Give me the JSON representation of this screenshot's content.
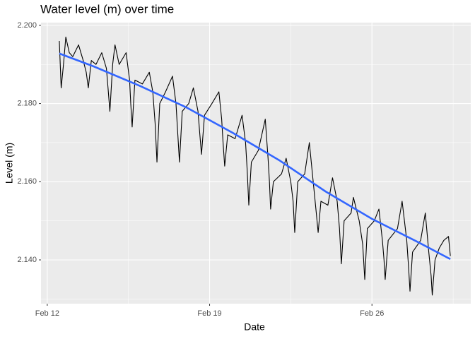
{
  "chart_data": {
    "type": "line",
    "title": "Water level (m) over time",
    "x_label": "Date",
    "y_label": "Level (m)",
    "xlim": [
      11.73,
      30.26
    ],
    "ylim": [
      2.1288,
      2.2007
    ],
    "xticks": [
      {
        "value": 12,
        "label": "Feb 12"
      },
      {
        "value": 19,
        "label": "Feb 19"
      },
      {
        "value": 26,
        "label": "Feb 26"
      }
    ],
    "yticks": [
      {
        "value": 2.14,
        "label": "2.140"
      },
      {
        "value": 2.16,
        "label": "2.160"
      },
      {
        "value": 2.18,
        "label": "2.180"
      },
      {
        "value": 2.2,
        "label": "2.200"
      }
    ],
    "xminor": [
      15.5,
      22.5,
      29.5
    ],
    "yminor": [
      2.13,
      2.15,
      2.17,
      2.19
    ],
    "grid": true,
    "background": "#ebebeb",
    "series": [
      {
        "color": "#000000",
        "width": 1.1,
        "x": [
          12.52,
          12.6,
          12.7,
          12.8,
          12.95,
          13.1,
          13.35,
          13.55,
          13.68,
          13.77,
          13.9,
          14.1,
          14.35,
          14.55,
          14.62,
          14.7,
          14.82,
          14.92,
          15.1,
          15.4,
          15.55,
          15.6,
          15.66,
          15.78,
          16.1,
          16.4,
          16.55,
          16.65,
          16.73,
          16.85,
          17.1,
          17.4,
          17.55,
          17.63,
          17.7,
          17.82,
          18.1,
          18.3,
          18.5,
          18.58,
          18.65,
          18.78,
          19.1,
          19.4,
          19.52,
          19.58,
          19.65,
          19.78,
          20.1,
          20.4,
          20.55,
          20.62,
          20.69,
          20.8,
          21.1,
          21.4,
          21.52,
          21.58,
          21.63,
          21.75,
          22.1,
          22.3,
          22.5,
          22.6,
          22.67,
          22.8,
          23.1,
          23.3,
          23.5,
          23.6,
          23.68,
          23.8,
          24.1,
          24.3,
          24.5,
          24.6,
          24.68,
          24.8,
          25.1,
          25.2,
          25.45,
          25.6,
          25.69,
          25.8,
          26.1,
          26.3,
          26.45,
          26.52,
          26.57,
          26.7,
          27.1,
          27.3,
          27.5,
          27.58,
          27.64,
          27.75,
          28.1,
          28.3,
          28.45,
          28.55,
          28.6,
          28.72,
          28.9,
          29.1,
          29.3,
          29.38
        ],
        "values": [
          2.196,
          2.184,
          2.19,
          2.197,
          2.193,
          2.192,
          2.195,
          2.191,
          2.188,
          2.184,
          2.191,
          2.19,
          2.193,
          2.189,
          2.184,
          2.178,
          2.19,
          2.195,
          2.19,
          2.193,
          2.186,
          2.18,
          2.174,
          2.186,
          2.185,
          2.188,
          2.183,
          2.175,
          2.165,
          2.18,
          2.183,
          2.187,
          2.18,
          2.172,
          2.165,
          2.178,
          2.18,
          2.184,
          2.178,
          2.172,
          2.167,
          2.177,
          2.18,
          2.183,
          2.176,
          2.17,
          2.164,
          2.172,
          2.171,
          2.177,
          2.17,
          2.163,
          2.154,
          2.165,
          2.168,
          2.176,
          2.166,
          2.16,
          2.153,
          2.16,
          2.162,
          2.166,
          2.16,
          2.155,
          2.147,
          2.16,
          2.162,
          2.17,
          2.158,
          2.152,
          2.147,
          2.155,
          2.154,
          2.161,
          2.155,
          2.148,
          2.139,
          2.15,
          2.152,
          2.156,
          2.15,
          2.144,
          2.135,
          2.148,
          2.15,
          2.153,
          2.145,
          2.14,
          2.135,
          2.145,
          2.148,
          2.155,
          2.145,
          2.138,
          2.132,
          2.142,
          2.145,
          2.152,
          2.142,
          2.136,
          2.131,
          2.14,
          2.143,
          2.145,
          2.146,
          2.141
        ]
      },
      {
        "color": "#3366ff",
        "width": 2.6,
        "x": [
          12.52,
          14,
          16,
          18,
          20,
          22,
          24,
          26,
          28,
          29.38
        ],
        "values": [
          2.1928,
          2.1895,
          2.1845,
          2.179,
          2.1725,
          2.1655,
          2.1575,
          2.1505,
          2.1445,
          2.1402
        ]
      }
    ]
  }
}
